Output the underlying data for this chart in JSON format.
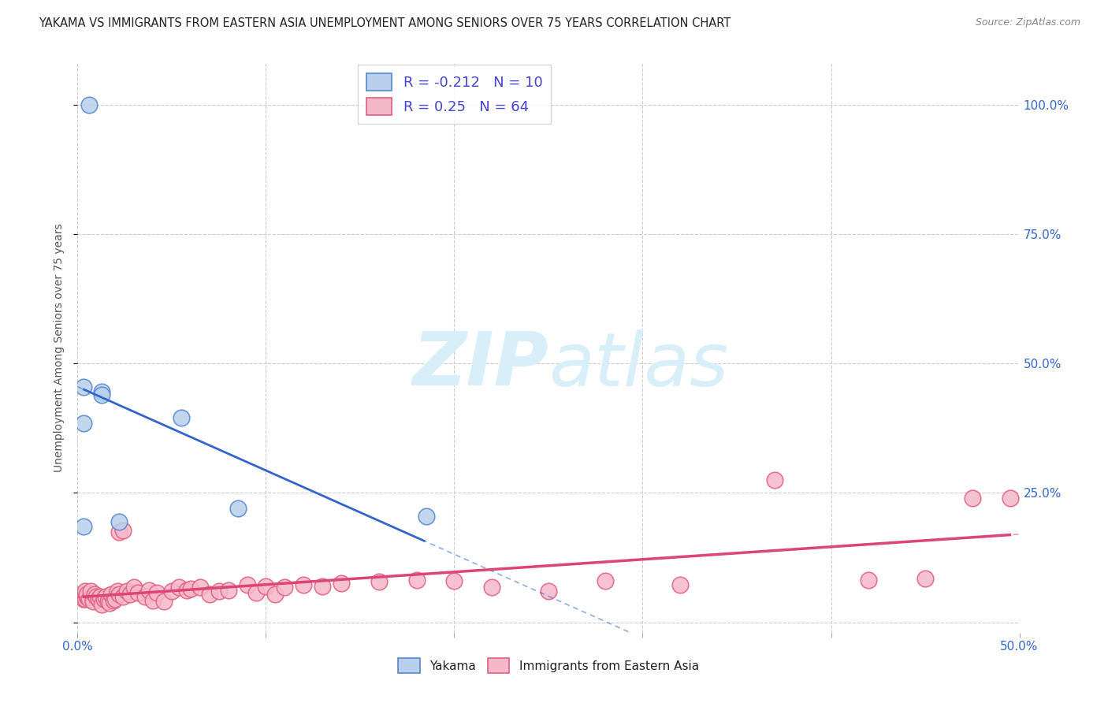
{
  "title": "YAKAMA VS IMMIGRANTS FROM EASTERN ASIA UNEMPLOYMENT AMONG SENIORS OVER 75 YEARS CORRELATION CHART",
  "source": "Source: ZipAtlas.com",
  "ylabel": "Unemployment Among Seniors over 75 years",
  "xlim": [
    0.0,
    0.5
  ],
  "ylim": [
    -0.02,
    1.08
  ],
  "xticks": [
    0.0,
    0.1,
    0.2,
    0.3,
    0.4,
    0.5
  ],
  "yticks": [
    0.0,
    0.25,
    0.5,
    0.75,
    1.0
  ],
  "ytick_labels_right": [
    "",
    "25.0%",
    "50.0%",
    "75.0%",
    "100.0%"
  ],
  "xtick_labels": [
    "0.0%",
    "",
    "",
    "",
    "",
    "50.0%"
  ],
  "background_color": "#ffffff",
  "grid_color": "#cccccc",
  "yakama_color": "#b8d0ec",
  "yakama_edge_color": "#5588cc",
  "immigrants_color": "#f5b8cb",
  "immigrants_edge_color": "#e06080",
  "trend_yakama_color": "#3366cc",
  "trend_immigrants_color": "#dd4477",
  "R_yakama": -0.212,
  "N_yakama": 10,
  "R_immigrants": 0.25,
  "N_immigrants": 64,
  "yakama_x": [
    0.006,
    0.013,
    0.013,
    0.055,
    0.003,
    0.003,
    0.022,
    0.085,
    0.185,
    0.003
  ],
  "yakama_y": [
    1.0,
    0.445,
    0.44,
    0.395,
    0.455,
    0.385,
    0.195,
    0.22,
    0.205,
    0.185
  ],
  "immigrants_x": [
    0.002,
    0.003,
    0.004,
    0.004,
    0.005,
    0.005,
    0.006,
    0.007,
    0.008,
    0.008,
    0.009,
    0.01,
    0.011,
    0.012,
    0.013,
    0.014,
    0.015,
    0.016,
    0.017,
    0.018,
    0.019,
    0.02,
    0.021,
    0.022,
    0.022,
    0.024,
    0.024,
    0.026,
    0.028,
    0.03,
    0.032,
    0.036,
    0.038,
    0.04,
    0.042,
    0.046,
    0.05,
    0.054,
    0.058,
    0.06,
    0.065,
    0.07,
    0.075,
    0.08,
    0.09,
    0.095,
    0.1,
    0.105,
    0.11,
    0.12,
    0.13,
    0.14,
    0.16,
    0.18,
    0.2,
    0.22,
    0.25,
    0.28,
    0.32,
    0.37,
    0.42,
    0.45,
    0.475,
    0.495
  ],
  "immigrants_y": [
    0.055,
    0.045,
    0.06,
    0.045,
    0.05,
    0.055,
    0.045,
    0.06,
    0.045,
    0.04,
    0.055,
    0.05,
    0.045,
    0.05,
    0.035,
    0.045,
    0.05,
    0.04,
    0.038,
    0.055,
    0.042,
    0.045,
    0.06,
    0.055,
    0.175,
    0.178,
    0.05,
    0.06,
    0.055,
    0.068,
    0.058,
    0.05,
    0.062,
    0.042,
    0.058,
    0.04,
    0.06,
    0.068,
    0.062,
    0.065,
    0.068,
    0.055,
    0.06,
    0.062,
    0.072,
    0.058,
    0.07,
    0.055,
    0.068,
    0.072,
    0.07,
    0.075,
    0.078,
    0.082,
    0.08,
    0.068,
    0.06,
    0.08,
    0.072,
    0.275,
    0.082,
    0.085,
    0.24,
    0.24
  ],
  "watermark_zip": "ZIP",
  "watermark_atlas": "atlas",
  "watermark_color": "#d8eef8",
  "legend_box_color": "#ffffff",
  "legend_border_color": "#cccccc",
  "legend_r_color": "#4444cc",
  "legend_n_color": "#4444cc"
}
